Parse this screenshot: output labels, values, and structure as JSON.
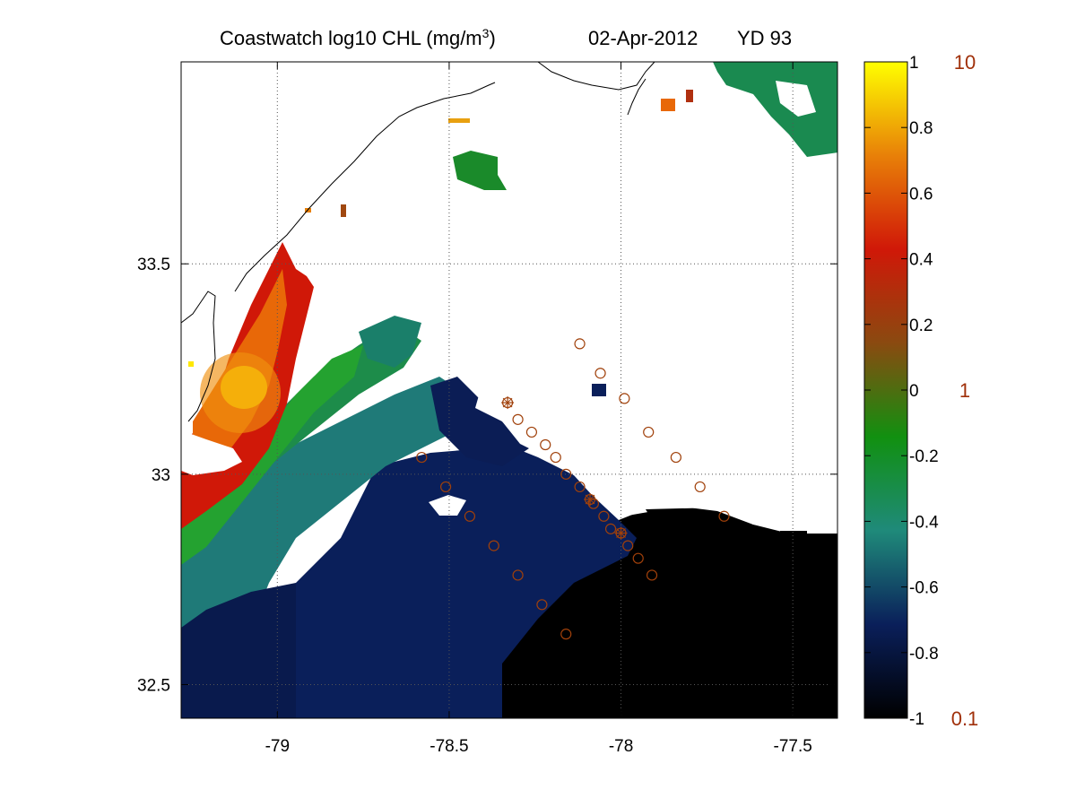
{
  "title": {
    "prefix": "Coastwatch  log10  CHL (mg/m",
    "superscript": "3",
    "suffix": ")",
    "date": "02-Apr-2012",
    "yearday": "YD 93"
  },
  "map": {
    "lon_range": [
      -79.28,
      -77.37
    ],
    "lat_range": [
      32.42,
      33.98
    ],
    "x_ticks": [
      {
        "value": -79,
        "label": "-79"
      },
      {
        "value": -78.5,
        "label": "-78.5"
      },
      {
        "value": -78,
        "label": "-78"
      },
      {
        "value": -77.5,
        "label": "-77.5"
      }
    ],
    "y_ticks": [
      {
        "value": 33.5,
        "label": "33.5"
      },
      {
        "value": 33,
        "label": "33"
      },
      {
        "value": 32.5,
        "label": "32.5"
      }
    ],
    "gridlines": true,
    "gridline_style": "dotted"
  },
  "colorbar": {
    "min": -1,
    "max": 1,
    "colormap": [
      "#000000",
      "#0a1f5a",
      "#1f8a7a",
      "#119010",
      "#8a4a10",
      "#d01808",
      "#e88008",
      "#ffff00"
    ],
    "ticks": [
      {
        "value": 1,
        "label": "1"
      },
      {
        "value": 0.8,
        "label": "0.8"
      },
      {
        "value": 0.6,
        "label": "0.6"
      },
      {
        "value": 0.4,
        "label": "0.4"
      },
      {
        "value": 0.2,
        "label": "0.2"
      },
      {
        "value": 0,
        "label": "0"
      },
      {
        "value": -0.2,
        "label": "-0.2"
      },
      {
        "value": -0.4,
        "label": "-0.4"
      },
      {
        "value": -0.6,
        "label": "-0.6"
      },
      {
        "value": -0.8,
        "label": "-0.8"
      },
      {
        "value": -1,
        "label": "-1"
      }
    ],
    "concentration_labels": [
      {
        "value": 1,
        "label": "10"
      },
      {
        "value": 0,
        "label": "1"
      },
      {
        "value": -1,
        "label": "0.1"
      }
    ],
    "concentration_label_color": "#a0300a"
  },
  "stations": {
    "marker_color": "#a0400a",
    "circles": [
      [
        -78.12,
        33.31
      ],
      [
        -78.06,
        33.24
      ],
      [
        -77.99,
        33.18
      ],
      [
        -77.92,
        33.1
      ],
      [
        -77.84,
        33.04
      ],
      [
        -77.77,
        32.97
      ],
      [
        -77.7,
        32.9
      ],
      [
        -78.3,
        33.13
      ],
      [
        -78.26,
        33.1
      ],
      [
        -78.22,
        33.07
      ],
      [
        -78.19,
        33.04
      ],
      [
        -78.16,
        33.0
      ],
      [
        -78.12,
        32.97
      ],
      [
        -78.08,
        32.93
      ],
      [
        -78.05,
        32.9
      ],
      [
        -78.03,
        32.87
      ],
      [
        -78.0,
        32.86
      ],
      [
        -77.98,
        32.83
      ],
      [
        -77.95,
        32.8
      ],
      [
        -77.91,
        32.76
      ],
      [
        -78.58,
        33.04
      ],
      [
        -78.51,
        32.97
      ],
      [
        -78.44,
        32.9
      ],
      [
        -78.37,
        32.83
      ],
      [
        -78.3,
        32.76
      ],
      [
        -78.23,
        32.69
      ],
      [
        -78.16,
        32.62
      ]
    ],
    "crossed": [
      [
        -78.33,
        33.17
      ],
      [
        -78.09,
        32.94
      ],
      [
        -78.0,
        32.86
      ]
    ]
  }
}
